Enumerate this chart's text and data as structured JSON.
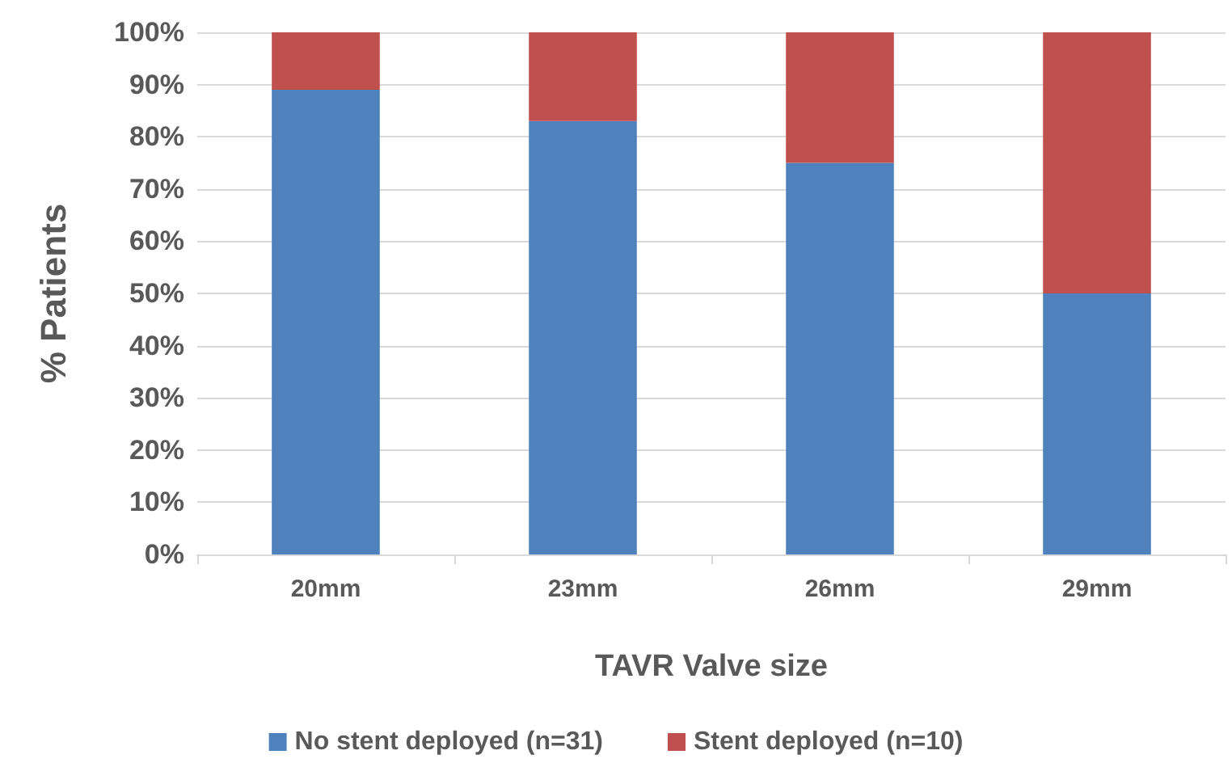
{
  "chart_data": {
    "type": "bar",
    "stacked": true,
    "xlabel": "TAVR Valve size",
    "ylabel": "% Patients",
    "categories": [
      "20mm",
      "23mm",
      "26mm",
      "29mm"
    ],
    "series": [
      {
        "name": "No stent deployed (n=31)",
        "color": "#4f81bd",
        "values": [
          89,
          83,
          75,
          50
        ]
      },
      {
        "name": "Stent deployed (n=10)",
        "color": "#c0504d",
        "values": [
          11,
          17,
          25,
          50
        ]
      }
    ],
    "ylim": [
      0,
      100
    ],
    "yticks": [
      {
        "value": 0,
        "label": "0%"
      },
      {
        "value": 10,
        "label": "10%"
      },
      {
        "value": 20,
        "label": "20%"
      },
      {
        "value": 30,
        "label": "30%"
      },
      {
        "value": 40,
        "label": "40%"
      },
      {
        "value": 50,
        "label": "50%"
      },
      {
        "value": 60,
        "label": "60%"
      },
      {
        "value": 70,
        "label": "70%"
      },
      {
        "value": 80,
        "label": "80%"
      },
      {
        "value": 90,
        "label": "90%"
      },
      {
        "value": 100,
        "label": "100%"
      }
    ],
    "grid": "y",
    "legend": "bottom"
  }
}
